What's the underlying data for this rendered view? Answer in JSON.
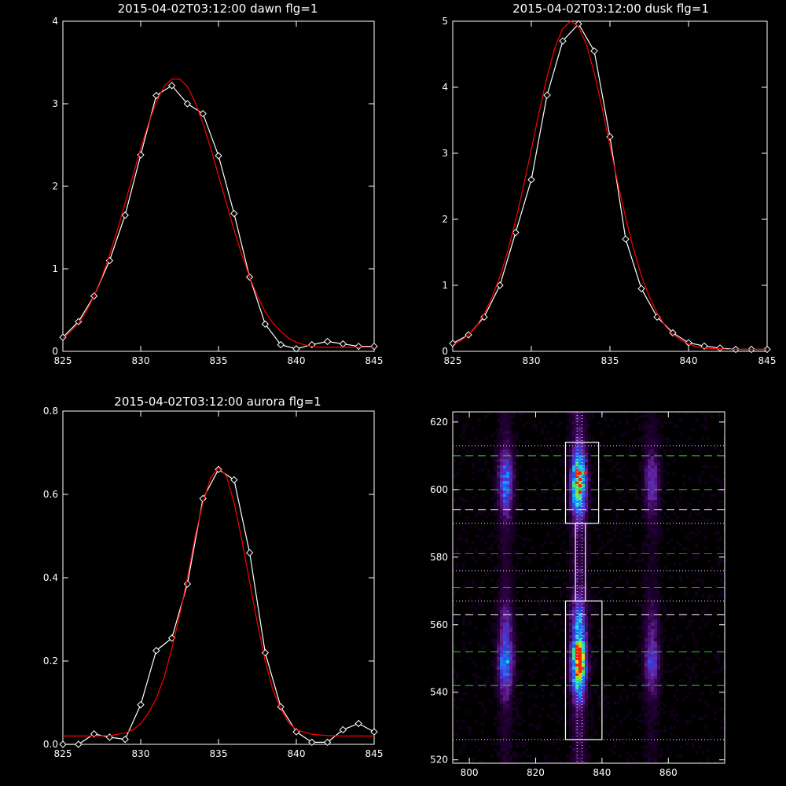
{
  "chart_data": [
    {
      "type": "line",
      "title": "2015-04-02T03:12:00 dawn flg=1",
      "xlim": [
        825,
        845
      ],
      "ylim": [
        0,
        4
      ],
      "xticks": [
        825,
        830,
        835,
        840,
        845
      ],
      "yticks": [
        0,
        1,
        2,
        3,
        4
      ],
      "grid": false,
      "series": [
        {
          "color": "#ffffff",
          "markers": "diamond",
          "x": [
            825,
            826,
            827,
            828,
            829,
            830,
            831,
            832,
            833,
            834,
            835,
            836,
            837,
            838,
            839,
            840,
            841,
            842,
            843,
            844,
            845
          ],
          "y": [
            0.17,
            0.36,
            0.67,
            1.1,
            1.65,
            2.38,
            3.1,
            3.22,
            3.0,
            2.88,
            2.37,
            1.67,
            0.9,
            0.33,
            0.08,
            0.03,
            0.08,
            0.12,
            0.09,
            0.06,
            0.06
          ]
        },
        {
          "color": "#ff0000",
          "markers": "none",
          "x": [
            825,
            825.5,
            826,
            826.5,
            827,
            827.5,
            828,
            828.5,
            829,
            829.5,
            830,
            830.5,
            831,
            831.5,
            832,
            832.5,
            833,
            833.5,
            834,
            834.5,
            835,
            835.5,
            836,
            836.5,
            837,
            837.5,
            838,
            838.5,
            839,
            839.5,
            840,
            840.5,
            841,
            841.5,
            842,
            842.5,
            843,
            843.5,
            844,
            844.5,
            845
          ],
          "y": [
            0.16,
            0.24,
            0.34,
            0.48,
            0.67,
            0.9,
            1.17,
            1.47,
            1.8,
            2.13,
            2.46,
            2.76,
            3.02,
            3.21,
            3.3,
            3.3,
            3.21,
            3.02,
            2.76,
            2.46,
            2.13,
            1.8,
            1.47,
            1.17,
            0.9,
            0.67,
            0.48,
            0.34,
            0.24,
            0.16,
            0.11,
            0.08,
            0.06,
            0.05,
            0.05,
            0.05,
            0.05,
            0.05,
            0.05,
            0.05,
            0.05
          ]
        }
      ]
    },
    {
      "type": "line",
      "title": "2015-04-02T03:12:00 dusk flg=1",
      "xlim": [
        825,
        845
      ],
      "ylim": [
        0,
        5
      ],
      "xticks": [
        825,
        830,
        835,
        840,
        845
      ],
      "yticks": [
        0,
        1,
        2,
        3,
        4,
        5
      ],
      "grid": false,
      "series": [
        {
          "color": "#ffffff",
          "markers": "diamond",
          "x": [
            825,
            826,
            827,
            828,
            829,
            830,
            831,
            832,
            833,
            834,
            835,
            836,
            837,
            838,
            839,
            840,
            841,
            842,
            843,
            844,
            845
          ],
          "y": [
            0.12,
            0.25,
            0.52,
            1.0,
            1.8,
            2.6,
            3.88,
            4.7,
            4.96,
            4.55,
            3.25,
            1.7,
            0.95,
            0.52,
            0.28,
            0.13,
            0.08,
            0.05,
            0.03,
            0.03,
            0.03
          ]
        },
        {
          "color": "#ff0000",
          "markers": "none",
          "x": [
            825,
            825.5,
            826,
            826.5,
            827,
            827.5,
            828,
            828.5,
            829,
            829.5,
            830,
            830.5,
            831,
            831.5,
            832,
            832.5,
            833,
            833.5,
            834,
            834.5,
            835,
            835.5,
            836,
            836.5,
            837,
            837.5,
            838,
            838.5,
            839,
            839.5,
            840,
            840.5,
            841,
            841.5,
            842,
            842.5,
            843,
            843.5,
            844,
            844.5,
            845
          ],
          "y": [
            0.1,
            0.16,
            0.25,
            0.38,
            0.57,
            0.82,
            1.13,
            1.52,
            1.98,
            2.5,
            3.06,
            3.63,
            4.16,
            4.6,
            4.89,
            5.0,
            4.92,
            4.65,
            4.22,
            3.69,
            3.11,
            2.55,
            2.02,
            1.55,
            1.15,
            0.83,
            0.58,
            0.39,
            0.26,
            0.17,
            0.11,
            0.07,
            0.05,
            0.04,
            0.04,
            0.03,
            0.03,
            0.03,
            0.03,
            0.03,
            0.03
          ]
        }
      ]
    },
    {
      "type": "line",
      "title": "2015-04-02T03:12:00 aurora flg=1",
      "xlim": [
        825,
        845
      ],
      "ylim": [
        0,
        0.8
      ],
      "xticks": [
        825,
        830,
        835,
        840,
        845
      ],
      "yticks": [
        0.0,
        0.2,
        0.4,
        0.6,
        0.8
      ],
      "yticklabels": [
        "0.0",
        "0.2",
        "0.4",
        "0.6",
        "0.8"
      ],
      "grid": false,
      "series": [
        {
          "color": "#ffffff",
          "markers": "diamond",
          "x": [
            825,
            826,
            827,
            828,
            829,
            830,
            831,
            832,
            833,
            834,
            835,
            836,
            837,
            838,
            839,
            840,
            841,
            842,
            843,
            844,
            845
          ],
          "y": [
            0.0,
            0.0,
            0.025,
            0.017,
            0.012,
            0.095,
            0.225,
            0.255,
            0.385,
            0.59,
            0.66,
            0.635,
            0.46,
            0.22,
            0.09,
            0.03,
            0.005,
            0.005,
            0.035,
            0.05,
            0.03
          ]
        },
        {
          "color": "#ff0000",
          "markers": "none",
          "x": [
            825,
            826,
            827,
            828,
            829,
            829.5,
            830,
            830.5,
            831,
            831.5,
            832,
            832.5,
            833,
            833.5,
            834,
            834.5,
            835,
            835.5,
            836,
            836.5,
            837,
            837.5,
            838,
            838.5,
            839,
            839.5,
            840,
            841,
            842,
            843,
            844,
            845
          ],
          "y": [
            0.02,
            0.02,
            0.02,
            0.021,
            0.027,
            0.035,
            0.05,
            0.075,
            0.11,
            0.16,
            0.23,
            0.31,
            0.4,
            0.5,
            0.58,
            0.64,
            0.665,
            0.645,
            0.58,
            0.49,
            0.39,
            0.29,
            0.2,
            0.13,
            0.085,
            0.052,
            0.035,
            0.024,
            0.021,
            0.02,
            0.02,
            0.02
          ]
        }
      ]
    },
    {
      "type": "heatmap",
      "xlim": [
        795,
        877
      ],
      "ylim": [
        519,
        623
      ],
      "xticks": [
        800,
        820,
        840,
        860
      ],
      "yticks": [
        520,
        540,
        560,
        580,
        600,
        620
      ],
      "columns": [
        {
          "x": 811,
          "strength": 0.45
        },
        {
          "x": 833,
          "strength": 0.85
        },
        {
          "x": 855,
          "strength": 0.3
        }
      ],
      "blobs": [
        {
          "y": 602,
          "amp": 1.0
        },
        {
          "y": 549,
          "amp": 1.15
        },
        {
          "y": 558,
          "amp": 0.6
        }
      ],
      "hotspots": [
        {
          "x": 835,
          "y": 605
        },
        {
          "x": 834,
          "y": 547
        },
        {
          "x": 833,
          "y": 550
        }
      ],
      "boxes": [
        {
          "x": [
            829,
            839
          ],
          "y": [
            590,
            614
          ]
        },
        {
          "x": [
            829,
            840
          ],
          "y": [
            526,
            567
          ]
        },
        {
          "x": [
            832,
            835
          ],
          "y": [
            567,
            590
          ]
        }
      ],
      "hlines": [
        {
          "y": 610,
          "color": "#30d030",
          "style": "dashed"
        },
        {
          "y": 600,
          "color": "#30d030",
          "style": "dashed"
        },
        {
          "y": 552,
          "color": "#30d030",
          "style": "dashed"
        },
        {
          "y": 542,
          "color": "#30d030",
          "style": "dashed"
        },
        {
          "y": 594,
          "color": "#ffffff",
          "style": "dashed"
        },
        {
          "y": 563,
          "color": "#ffffff",
          "style": "dashed"
        },
        {
          "y": 581,
          "color": "#ff2020",
          "style": "dashed"
        },
        {
          "y": 571,
          "color": "#ff2020",
          "style": "dashed"
        },
        {
          "y": 613,
          "color": "#ffffff",
          "style": "dotted"
        },
        {
          "y": 590,
          "color": "#ffffff",
          "style": "dotted"
        },
        {
          "y": 576,
          "color": "#ffffff",
          "style": "dotted"
        },
        {
          "y": 567,
          "color": "#ffffff",
          "style": "dotted"
        },
        {
          "y": 526,
          "color": "#ffffff",
          "style": "dotted"
        }
      ],
      "vlines": [
        {
          "x": 832.5,
          "color": "#ffffff",
          "style": "dotted"
        },
        {
          "x": 834,
          "color": "#ffffff",
          "style": "dotted"
        }
      ]
    }
  ]
}
